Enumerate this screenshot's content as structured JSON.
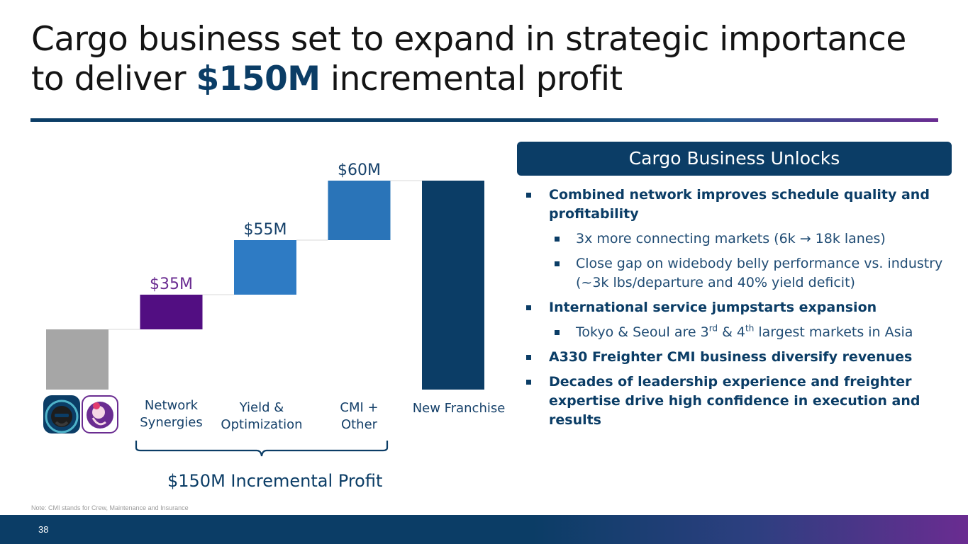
{
  "slide": {
    "title_part1": "Cargo business set to expand in strategic importance to deliver ",
    "title_highlight": "$150M",
    "title_part2": " incremental profit",
    "note": "Note: CMI stands for Crew, Maintenance and Insurance",
    "page_number": "38",
    "colors": {
      "navy": "#0b3d66",
      "purple": "#5b1a8a",
      "blue_mid": "#2e7bc4",
      "blue_light": "#2a74b8",
      "gray": "#a6a6a6",
      "accent_gradient_end": "#6a2c91"
    }
  },
  "chart_data": {
    "type": "bar",
    "subtype": "waterfall",
    "categories": [
      "",
      "Network Synergies",
      "Yield & Optimization",
      "CMI + Other",
      "New Franchise"
    ],
    "category_lines": [
      [],
      [
        "Network",
        "Synergies"
      ],
      [
        "Yield &",
        "Optimization"
      ],
      [
        "CMI +",
        "Other"
      ],
      [
        "New Franchise"
      ]
    ],
    "increments": [
      null,
      35,
      55,
      60,
      null
    ],
    "value_labels": [
      "",
      "$35M",
      "$55M",
      "$60M",
      ""
    ],
    "bar_roles": [
      "base",
      "increment",
      "increment",
      "increment",
      "total"
    ],
    "bar_colors": [
      "#a6a6a6",
      "#520e82",
      "#2e7bc4",
      "#2a74b8",
      "#0b3d66"
    ],
    "label_colors": [
      "#a6a6a6",
      "#6a2c91",
      "#16416a",
      "#16416a",
      "#16416a"
    ],
    "total_label": "$150M Incremental Profit",
    "total_increment": 150
  },
  "panel": {
    "header": "Cargo Business Unlocks",
    "bullets": [
      {
        "text": "Combined network improves schedule quality and profitability",
        "subs": [
          "3x more connecting markets (6k → 18k lanes)",
          "Close gap on widebody belly performance vs. industry (~3k lbs/departure and 40% yield deficit)"
        ]
      },
      {
        "text": "International service jumpstarts expansion",
        "subs_rich": {
          "a": "Tokyo & Seoul are 3",
          "sup1": "rd",
          "b": " & 4",
          "sup2": "th",
          "c": " largest markets in Asia"
        }
      },
      {
        "text": "A330 Freighter CMI business diversify revenues"
      },
      {
        "text": "Decades of leadership experience and freighter expertise drive high confidence in execution and results"
      }
    ]
  },
  "logos": {
    "left": "alaska-airlines-icon",
    "right": "hawaiian-airlines-icon"
  }
}
